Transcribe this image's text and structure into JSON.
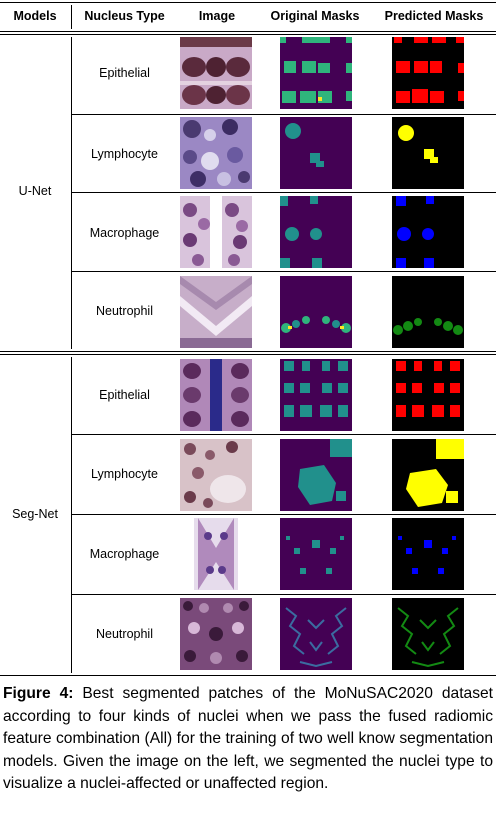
{
  "headers": {
    "models": "Models",
    "nucleus_type": "Nucleus Type",
    "image": "Image",
    "original_masks": "Original Masks",
    "predicted_masks": "Predicted Masks"
  },
  "groups": [
    {
      "model": "U-Net",
      "rows": [
        {
          "nucleus": "Epithelial",
          "pred_color": "#ff0000"
        },
        {
          "nucleus": "Lymphocyte",
          "pred_color": "#ffff00"
        },
        {
          "nucleus": "Macrophage",
          "pred_color": "#0000ff"
        },
        {
          "nucleus": "Neutrophil",
          "pred_color": "#138a13"
        }
      ]
    },
    {
      "model": "Seg-Net",
      "rows": [
        {
          "nucleus": "Epithelial",
          "pred_color": "#ff0000"
        },
        {
          "nucleus": "Lymphocyte",
          "pred_color": "#ffff00"
        },
        {
          "nucleus": "Macrophage",
          "pred_color": "#0000ff"
        },
        {
          "nucleus": "Neutrophil",
          "pred_color": "#138a13"
        }
      ]
    }
  ],
  "colors": {
    "mask_background": "#440154",
    "mask_teal": "#21908c",
    "mask_green": "#2fb47c",
    "pred_background": "#000000"
  },
  "caption": {
    "label": "Figure 4:",
    "text": " Best segmented patches of the MoNuSAC2020 dataset according to four kinds of nuclei when we pass the fused radiomic feature combination (All) for the training of two well know segmentation models. Given the image on the left, we segmented the nuclei type to visualize a nuclei-affected or unaffected region."
  }
}
